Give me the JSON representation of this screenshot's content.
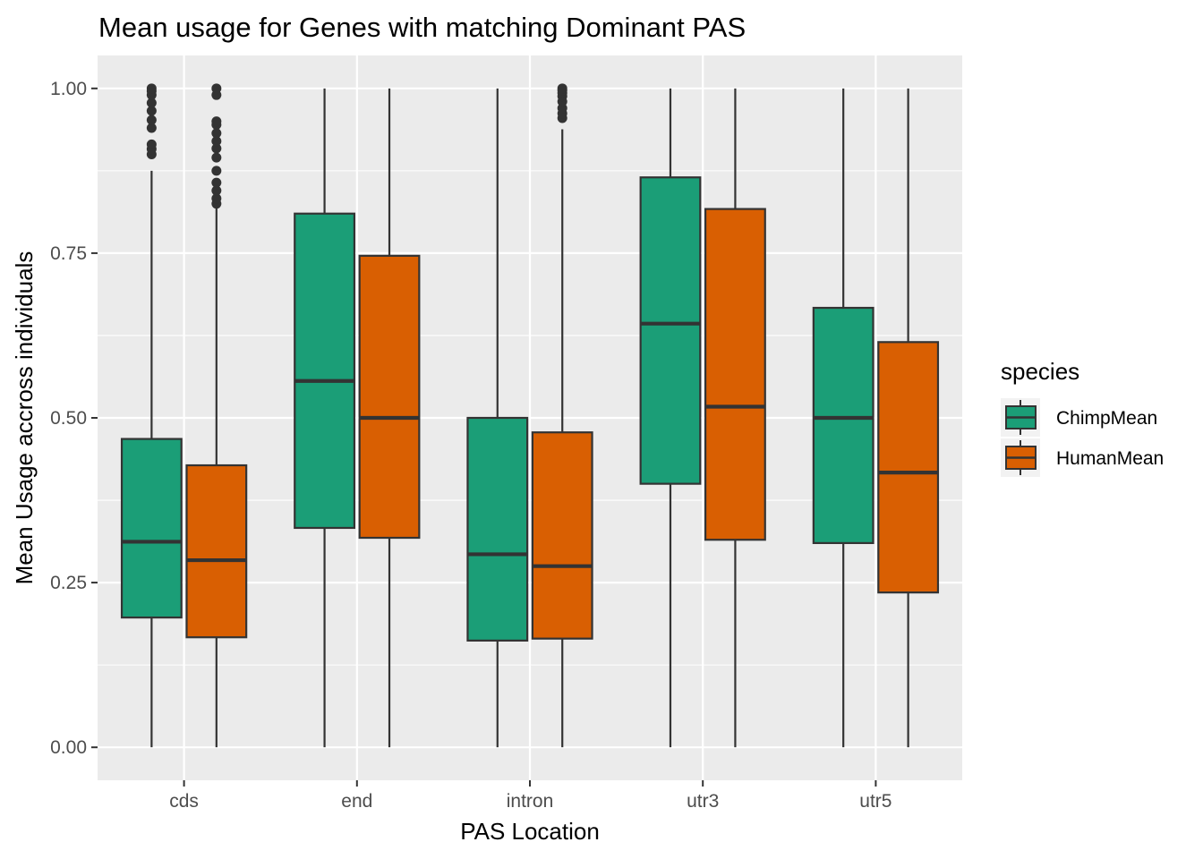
{
  "chart_data": {
    "type": "boxplot",
    "title": "Mean usage for Genes with matching Dominant PAS",
    "xlabel": "PAS Location",
    "ylabel": "Mean Usage accross individuals",
    "ylim": [
      -0.05,
      1.05
    ],
    "yticks": [
      0,
      0.25,
      0.5,
      0.75,
      1.0
    ],
    "ytick_labels": [
      "0.00",
      "0.25",
      "0.50",
      "0.75",
      "1.00"
    ],
    "grid": true,
    "categories": [
      "cds",
      "end",
      "intron",
      "utr3",
      "utr5"
    ],
    "legend": {
      "title": "species",
      "position": "right",
      "entries": [
        {
          "label": "ChimpMean",
          "color": "#1b9e77"
        },
        {
          "label": "HumanMean",
          "color": "#d95f02"
        }
      ]
    },
    "series": [
      {
        "name": "ChimpMean",
        "color": "#1b9e77",
        "boxes": [
          {
            "category": "cds",
            "whisker_low": 0.0,
            "q1": 0.197,
            "median": 0.312,
            "q3": 0.468,
            "whisker_high": 0.875,
            "outliers": [
              0.9,
              0.908,
              0.915,
              0.94,
              0.952,
              0.966,
              0.978,
              0.99,
              0.996,
              1.0
            ]
          },
          {
            "category": "end",
            "whisker_low": 0.0,
            "q1": 0.333,
            "median": 0.556,
            "q3": 0.81,
            "whisker_high": 1.0,
            "outliers": []
          },
          {
            "category": "intron",
            "whisker_low": 0.0,
            "q1": 0.162,
            "median": 0.293,
            "q3": 0.5,
            "whisker_high": 1.0,
            "outliers": []
          },
          {
            "category": "utr3",
            "whisker_low": 0.0,
            "q1": 0.4,
            "median": 0.643,
            "q3": 0.865,
            "whisker_high": 1.0,
            "outliers": []
          },
          {
            "category": "utr5",
            "whisker_low": 0.0,
            "q1": 0.31,
            "median": 0.5,
            "q3": 0.667,
            "whisker_high": 1.0,
            "outliers": []
          }
        ]
      },
      {
        "name": "HumanMean",
        "color": "#d95f02",
        "boxes": [
          {
            "category": "cds",
            "whisker_low": 0.0,
            "q1": 0.167,
            "median": 0.284,
            "q3": 0.428,
            "whisker_high": 0.818,
            "outliers": [
              0.825,
              0.833,
              0.845,
              0.857,
              0.875,
              0.895,
              0.909,
              0.92,
              0.932,
              0.945,
              0.95,
              0.99,
              1.0
            ]
          },
          {
            "category": "end",
            "whisker_low": 0.0,
            "q1": 0.318,
            "median": 0.5,
            "q3": 0.746,
            "whisker_high": 1.0,
            "outliers": []
          },
          {
            "category": "intron",
            "whisker_low": 0.0,
            "q1": 0.165,
            "median": 0.275,
            "q3": 0.478,
            "whisker_high": 0.938,
            "outliers": [
              0.955,
              0.962,
              0.97,
              0.98,
              0.988,
              0.993,
              0.997,
              1.0
            ]
          },
          {
            "category": "utr3",
            "whisker_low": 0.0,
            "q1": 0.315,
            "median": 0.517,
            "q3": 0.817,
            "whisker_high": 1.0,
            "outliers": []
          },
          {
            "category": "utr5",
            "whisker_low": 0.0,
            "q1": 0.235,
            "median": 0.417,
            "q3": 0.615,
            "whisker_high": 1.0,
            "outliers": []
          }
        ]
      }
    ]
  }
}
